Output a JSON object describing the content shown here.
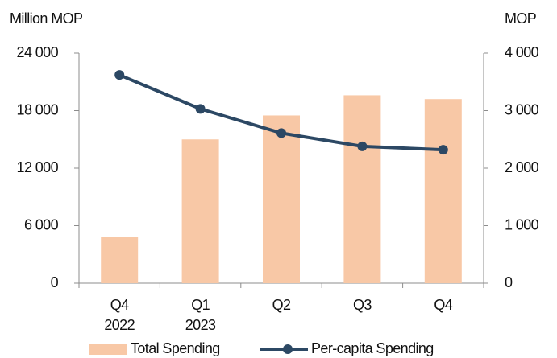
{
  "chart_data": {
    "type": "bar_line",
    "y_label": "Million MOP",
    "y2_label": "MOP",
    "categories": [
      [
        "Q4",
        "2022"
      ],
      [
        "Q1",
        "2023"
      ],
      [
        "Q2"
      ],
      [
        "Q3"
      ],
      [
        "Q4"
      ]
    ],
    "ylim": [
      0,
      24000
    ],
    "yticks": [
      0,
      {
        "value": 6000,
        "label": "6 000"
      },
      {
        "value": 12000,
        "label": "12 000"
      },
      {
        "value": 18000,
        "label": "18 000"
      },
      {
        "value": 24000,
        "label": "24 000"
      }
    ],
    "y2lim": [
      0,
      4000
    ],
    "y2ticks": [
      0,
      {
        "value": 1000,
        "label": "1 000"
      },
      {
        "value": 2000,
        "label": "2 000"
      },
      {
        "value": 3000,
        "label": "3 000"
      },
      {
        "value": 4000,
        "label": "4 000"
      }
    ],
    "series": [
      {
        "name": "Total Spending",
        "type": "bar",
        "color": "#f8c8a6",
        "values": [
          4800,
          15000,
          17500,
          19600,
          19200
        ]
      },
      {
        "name": "Per-capita Spending",
        "type": "line",
        "axis": "y2",
        "color": "#2c4864",
        "values": [
          3620,
          3030,
          2610,
          2380,
          2320
        ]
      }
    ]
  }
}
